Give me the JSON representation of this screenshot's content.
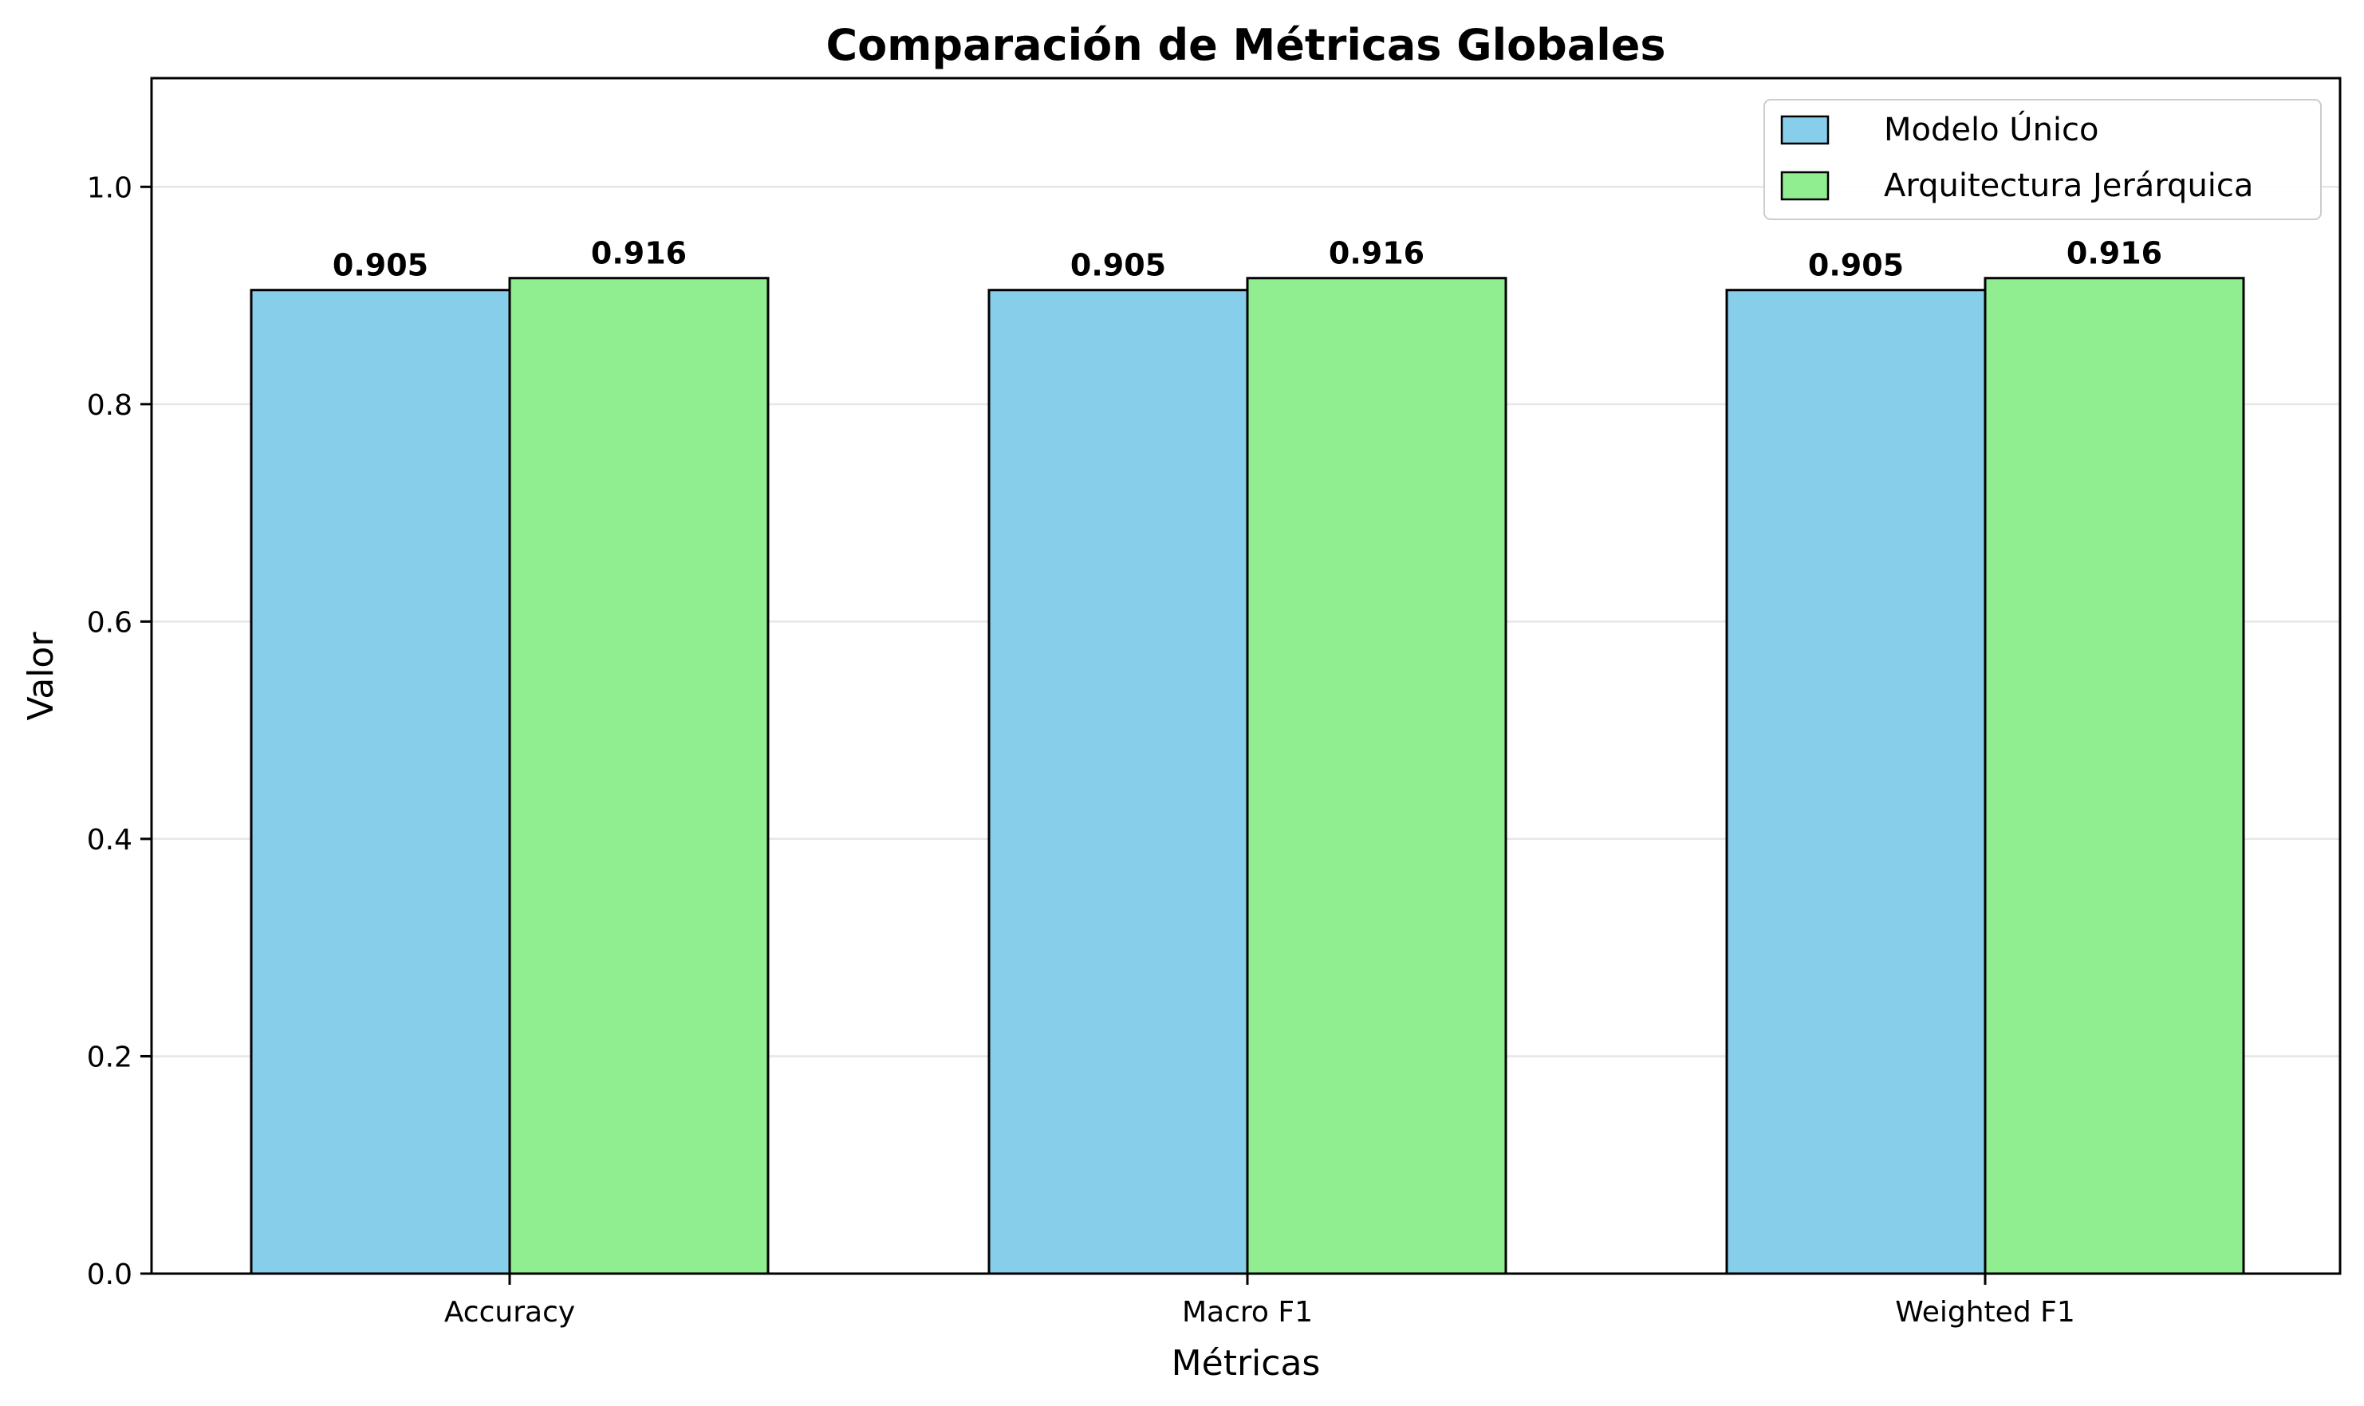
{
  "chart_data": {
    "type": "bar",
    "title": "Comparación de Métricas Globales",
    "xlabel": "Métricas",
    "ylabel": "Valor",
    "categories": [
      "Accuracy",
      "Macro F1",
      "Weighted F1"
    ],
    "series": [
      {
        "name": "Modelo Único",
        "values": [
          0.905,
          0.905,
          0.905
        ],
        "labels": [
          "0.905",
          "0.905",
          "0.905"
        ],
        "color": "#87CEEB"
      },
      {
        "name": "Arquitectura Jerárquica",
        "values": [
          0.916,
          0.916,
          0.916
        ],
        "labels": [
          "0.916",
          "0.916",
          "0.916"
        ],
        "color": "#90EE90"
      }
    ],
    "ylim": [
      0,
      1.1
    ],
    "yticks": [
      0.0,
      0.2,
      0.4,
      0.6,
      0.8,
      1.0
    ],
    "ytick_labels": [
      "0.0",
      "0.2",
      "0.4",
      "0.6",
      "0.8",
      "1.0"
    ],
    "grid": "horizontal",
    "legend_position": "top-right",
    "edge_color": "#000000",
    "grid_color": "#e6e6e6"
  }
}
